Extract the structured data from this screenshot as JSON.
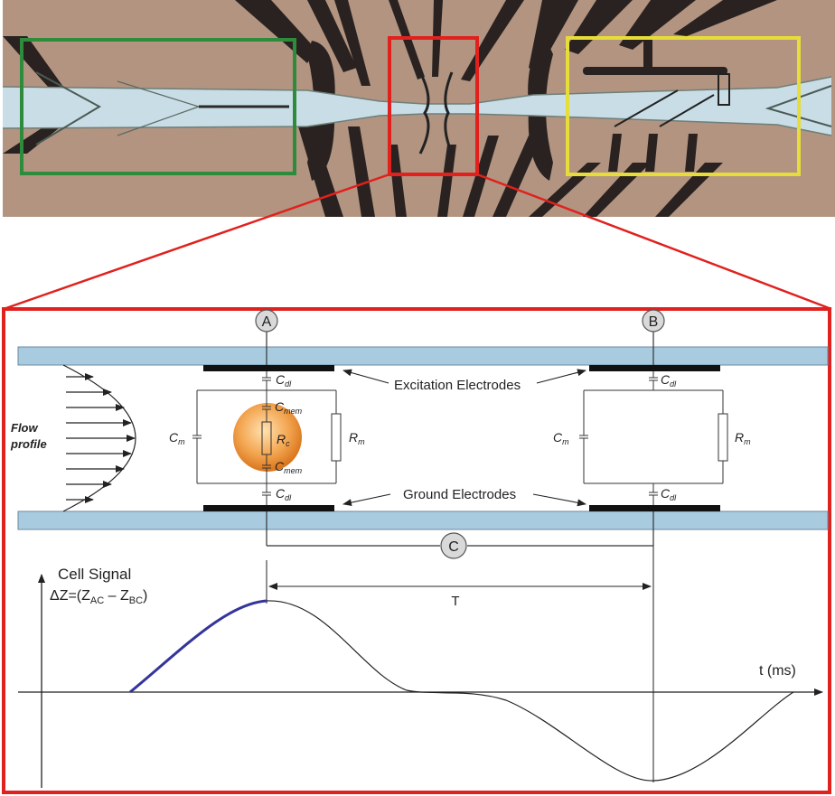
{
  "diagram": {
    "flow_profile": {
      "line1": "Flow",
      "line2": "profile"
    },
    "nodes": {
      "a": "A",
      "b": "B",
      "c": "C"
    },
    "excitation_label": "Excitation Electrodes",
    "ground_label": "Ground Electrodes",
    "components": {
      "cdl_base": "C",
      "cdl_sub": "dl",
      "cmem_base": "C",
      "cmem_sub": "mem",
      "cm_base": "C",
      "cm_sub": "m",
      "rm_base": "R",
      "rm_sub": "m",
      "rc_base": "R",
      "rc_sub": "c"
    },
    "signal": {
      "title": "Cell Signal",
      "formula_prefix": "ΔZ=(Z",
      "formula_sub1": "AC",
      "formula_mid": " – Z",
      "formula_sub2": "BC",
      "formula_suffix": ")",
      "interval_label": "T",
      "time_axis_label": "t (ms)"
    },
    "colors": {
      "frame": "#e0211d",
      "channel": "#a9cbe0",
      "electrode": "#111111",
      "cell_outer": "#e68a2e",
      "cell_inner": "#ffd9a0",
      "rising_edge": "#34359a",
      "box_green": "#2e8b3c",
      "box_red": "#e0211d",
      "box_yellow": "#e6dc3a"
    }
  }
}
